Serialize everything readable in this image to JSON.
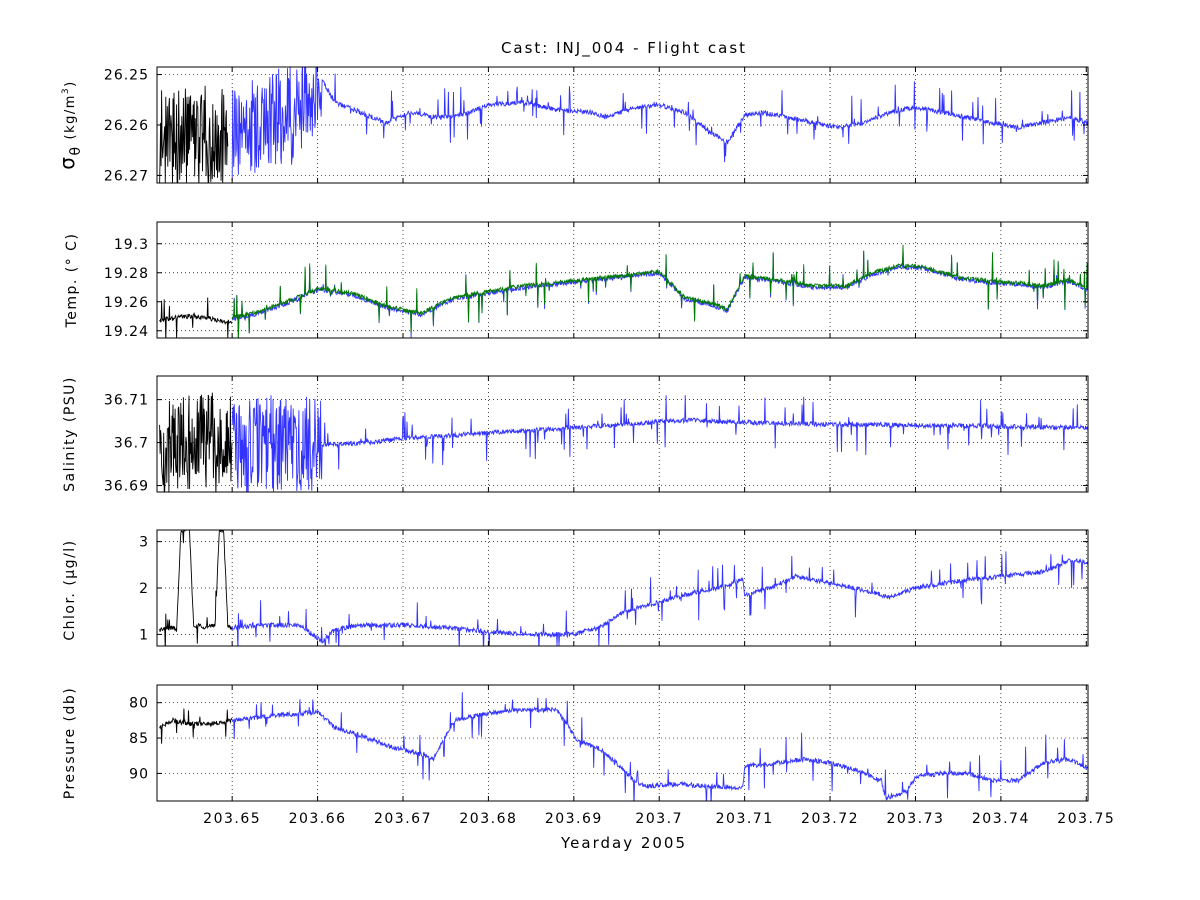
{
  "figure": {
    "title": "Cast: INJ_004 - Flight cast",
    "xlabel": "Yearday 2005"
  },
  "colors": {
    "early": "#000000",
    "main": "#3333ff",
    "secondary": "#007a00",
    "grid": "#000000"
  },
  "chart_data": [
    {
      "type": "line",
      "ylabel": "σθ (kg/m³)",
      "ylabel_parts": {
        "symbol": "σ",
        "sub": "θ",
        "units": "(kg/m",
        "sup": "3",
        "close": ")"
      },
      "xlim": [
        203.6412,
        203.7502
      ],
      "ylim": [
        26.2715,
        26.2485
      ],
      "y_reversed": true,
      "xticks": [
        203.65,
        203.66,
        203.67,
        203.68,
        203.69,
        203.7,
        203.71,
        203.72,
        203.73,
        203.74,
        203.75
      ],
      "yticks": [
        26.25,
        26.26,
        26.27
      ],
      "ytick_labels": [
        "26.25",
        "26.26",
        "26.27"
      ],
      "grid": true,
      "series": [
        {
          "color": "early",
          "x": [
            203.6415,
            203.643,
            203.6445,
            203.646,
            203.648,
            203.6495
          ],
          "y": [
            26.2625,
            26.263,
            26.2625,
            26.263,
            26.2625,
            26.263
          ]
        },
        {
          "color": "main",
          "x": [
            203.65,
            203.652,
            203.654,
            203.656,
            203.658,
            203.6595,
            203.6605,
            203.662,
            203.665,
            203.668,
            203.671,
            203.674,
            203.677,
            203.68,
            203.684,
            203.688,
            203.692,
            203.694,
            203.697,
            203.7,
            203.703,
            203.706,
            203.708,
            203.71,
            203.712,
            203.715,
            203.718,
            203.721,
            203.724,
            203.727,
            203.73,
            203.733,
            203.736,
            203.739,
            203.742,
            203.745,
            203.748,
            203.7502
          ],
          "y": [
            26.2615,
            26.2605,
            26.2595,
            26.258,
            26.2565,
            26.255,
            26.251,
            26.2555,
            26.2575,
            26.2595,
            26.2575,
            26.2585,
            26.258,
            26.256,
            26.2555,
            26.257,
            26.2575,
            26.2585,
            26.2565,
            26.256,
            26.2575,
            26.2615,
            26.2635,
            26.258,
            26.2575,
            26.2585,
            26.2595,
            26.2605,
            26.2595,
            26.2575,
            26.2565,
            26.2575,
            26.2585,
            26.2595,
            26.2605,
            26.2595,
            26.2585,
            26.2595
          ]
        }
      ]
    },
    {
      "type": "line",
      "ylabel": "Temp. (° C)",
      "xlim": [
        203.6412,
        203.7502
      ],
      "ylim": [
        19.235,
        19.315
      ],
      "xticks": [
        203.65,
        203.66,
        203.67,
        203.68,
        203.69,
        203.7,
        203.71,
        203.72,
        203.73,
        203.74,
        203.75
      ],
      "yticks": [
        19.24,
        19.26,
        19.28,
        19.3
      ],
      "ytick_labels": [
        "19.24",
        "19.26",
        "19.28",
        "19.3"
      ],
      "grid": true,
      "series": [
        {
          "color": "early",
          "x": [
            203.6415,
            203.643,
            203.645,
            203.647,
            203.649,
            203.65
          ],
          "y": [
            19.247,
            19.249,
            19.25,
            19.249,
            19.246,
            19.246
          ]
        },
        {
          "color": "main",
          "x": [
            203.65,
            203.653,
            203.656,
            203.66,
            203.664,
            203.668,
            203.672,
            203.676,
            203.68,
            203.684,
            203.688,
            203.692,
            203.696,
            203.7,
            203.703,
            203.706,
            203.708,
            203.71,
            203.714,
            203.718,
            203.722,
            203.725,
            203.728,
            203.731,
            203.735,
            203.739,
            203.742,
            203.745,
            203.748,
            203.7502
          ],
          "y": [
            19.248,
            19.252,
            19.258,
            19.268,
            19.265,
            19.256,
            19.251,
            19.262,
            19.266,
            19.27,
            19.272,
            19.275,
            19.277,
            19.28,
            19.262,
            19.258,
            19.254,
            19.277,
            19.274,
            19.27,
            19.27,
            19.279,
            19.284,
            19.283,
            19.276,
            19.273,
            19.272,
            19.27,
            19.274,
            19.268
          ]
        },
        {
          "color": "secondary",
          "x": [
            203.65,
            203.653,
            203.656,
            203.66,
            203.664,
            203.668,
            203.672,
            203.676,
            203.68,
            203.684,
            203.688,
            203.692,
            203.696,
            203.7,
            203.703,
            203.706,
            203.708,
            203.71,
            203.714,
            203.718,
            203.722,
            203.725,
            203.728,
            203.731,
            203.735,
            203.739,
            203.742,
            203.745,
            203.748,
            203.7502
          ],
          "y": [
            19.249,
            19.253,
            19.259,
            19.269,
            19.266,
            19.257,
            19.252,
            19.263,
            19.267,
            19.271,
            19.273,
            19.276,
            19.278,
            19.281,
            19.263,
            19.259,
            19.255,
            19.278,
            19.275,
            19.271,
            19.271,
            19.28,
            19.285,
            19.284,
            19.277,
            19.274,
            19.273,
            19.271,
            19.275,
            19.269
          ]
        }
      ]
    },
    {
      "type": "line",
      "ylabel": "Salinity (PSU)",
      "xlim": [
        203.6412,
        203.7502
      ],
      "ylim": [
        36.6885,
        36.7155
      ],
      "xticks": [
        203.65,
        203.66,
        203.67,
        203.68,
        203.69,
        203.7,
        203.71,
        203.72,
        203.73,
        203.74,
        203.75
      ],
      "yticks": [
        36.69,
        36.7,
        36.71
      ],
      "ytick_labels": [
        "36.69",
        "36.7",
        "36.71"
      ],
      "grid": true,
      "series": [
        {
          "color": "early",
          "x": [
            203.6415,
            203.644,
            203.646,
            203.6485,
            203.65
          ],
          "y": [
            36.6995,
            36.6995,
            36.7,
            36.6995,
            36.6995
          ]
        },
        {
          "color": "main",
          "x": [
            203.65,
            203.654,
            203.658,
            203.6605,
            203.663,
            203.666,
            203.67,
            203.674,
            203.678,
            203.682,
            203.686,
            203.69,
            203.694,
            203.698,
            203.7,
            203.704,
            203.708,
            203.712,
            203.716,
            203.72,
            203.725,
            203.73,
            203.735,
            203.74,
            203.745,
            203.7502
          ],
          "y": [
            36.6995,
            36.6995,
            36.6995,
            36.6995,
            36.6997,
            36.7,
            36.701,
            36.7015,
            36.702,
            36.7025,
            36.703,
            36.7035,
            36.704,
            36.7045,
            36.705,
            36.7052,
            36.7048,
            36.7046,
            36.7044,
            36.7042,
            36.7042,
            36.704,
            36.704,
            36.7038,
            36.7036,
            36.7035
          ]
        }
      ]
    },
    {
      "type": "line",
      "ylabel": "Chlor. (μg/l)",
      "xlim": [
        203.6412,
        203.7502
      ],
      "ylim": [
        0.75,
        3.25
      ],
      "xticks": [
        203.65,
        203.66,
        203.67,
        203.68,
        203.69,
        203.7,
        203.71,
        203.72,
        203.73,
        203.74,
        203.75
      ],
      "yticks": [
        1,
        2,
        3
      ],
      "ytick_labels": [
        "1",
        "2",
        "3"
      ],
      "grid": true,
      "series": [
        {
          "color": "early",
          "x": [
            203.6415,
            203.643,
            203.6435,
            203.644,
            203.645,
            203.6455,
            203.646,
            203.647,
            203.648,
            203.6485,
            203.649,
            203.6495,
            203.65
          ],
          "y": [
            1.1,
            1.15,
            1.1,
            3.25,
            3.25,
            1.15,
            1.2,
            1.15,
            1.2,
            3.25,
            3.25,
            1.15,
            1.15
          ]
        },
        {
          "color": "main",
          "x": [
            203.65,
            203.654,
            203.658,
            203.6605,
            203.662,
            203.665,
            203.67,
            203.675,
            203.68,
            203.685,
            203.69,
            203.693,
            203.696,
            203.7,
            203.704,
            203.708,
            203.7098,
            203.71,
            203.713,
            203.716,
            203.72,
            203.724,
            203.727,
            203.73,
            203.735,
            203.74,
            203.745,
            203.748,
            203.7502
          ],
          "y": [
            1.15,
            1.2,
            1.2,
            0.85,
            1.1,
            1.2,
            1.2,
            1.15,
            1.05,
            1.0,
            1.0,
            1.15,
            1.5,
            1.7,
            1.9,
            2.05,
            2.2,
            1.85,
            2.0,
            2.25,
            2.1,
            1.95,
            1.8,
            2.0,
            2.15,
            2.25,
            2.35,
            2.6,
            2.55
          ]
        }
      ]
    },
    {
      "type": "line",
      "ylabel": "Pressure (db)",
      "xlim": [
        203.6412,
        203.7502
      ],
      "ylim": [
        93.9,
        77.5
      ],
      "y_reversed": true,
      "xticks": [
        203.65,
        203.66,
        203.67,
        203.68,
        203.69,
        203.7,
        203.71,
        203.72,
        203.73,
        203.74,
        203.75
      ],
      "xtick_labels": [
        "203.65",
        "203.66",
        "203.67",
        "203.68",
        "203.69",
        "203.7",
        "203.71",
        "203.72",
        "203.73",
        "203.74",
        "203.75"
      ],
      "yticks": [
        80,
        85,
        90
      ],
      "ytick_labels": [
        "80",
        "85",
        "90"
      ],
      "grid": true,
      "series": [
        {
          "color": "early",
          "x": [
            203.6415,
            203.643,
            203.645,
            203.647,
            203.649,
            203.65
          ],
          "y": [
            83.5,
            82.5,
            83.0,
            83.0,
            82.8,
            82.5
          ]
        },
        {
          "color": "main",
          "x": [
            203.65,
            203.654,
            203.658,
            203.66,
            203.662,
            203.666,
            203.668,
            203.671,
            203.673,
            203.6735,
            203.676,
            203.68,
            203.684,
            203.688,
            203.6905,
            203.693,
            203.695,
            203.697,
            203.6985,
            203.702,
            203.706,
            203.7098,
            203.71,
            203.714,
            203.717,
            203.72,
            203.723,
            203.726,
            203.7265,
            203.729,
            203.73,
            203.733,
            203.736,
            203.739,
            203.742,
            203.745,
            203.748,
            203.7502
          ],
          "y": [
            82.5,
            82.0,
            81.5,
            81.3,
            83.5,
            85.0,
            86.0,
            87.0,
            87.5,
            88.0,
            82.5,
            81.5,
            81.0,
            81.0,
            85.5,
            86.5,
            88.5,
            91.0,
            91.8,
            91.5,
            91.8,
            92.0,
            89.0,
            88.5,
            88.0,
            88.5,
            89.5,
            91.0,
            93.5,
            92.5,
            90.5,
            90.0,
            90.0,
            91.0,
            91.0,
            88.5,
            88.0,
            89.2
          ]
        }
      ]
    }
  ]
}
